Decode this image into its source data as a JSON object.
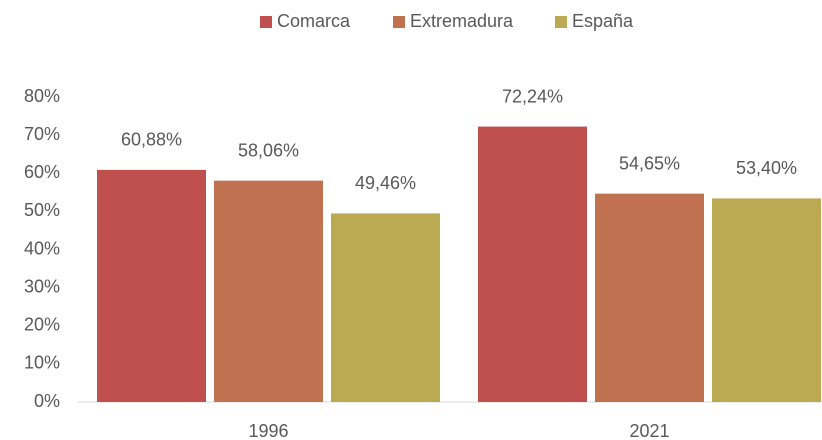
{
  "chart_data": {
    "type": "bar",
    "categories": [
      "1996",
      "2021"
    ],
    "series": [
      {
        "name": "Comarca",
        "color": "#c0504d",
        "values": [
          60.88,
          72.24
        ],
        "value_labels": [
          "60,88%",
          "72,24%"
        ]
      },
      {
        "name": "Extremadura",
        "color": "#c0714f",
        "values": [
          58.06,
          54.65
        ],
        "value_labels": [
          "58,06%",
          "54,65%"
        ]
      },
      {
        "name": "España",
        "color": "#bcaa52",
        "values": [
          49.46,
          53.4
        ],
        "value_labels": [
          "49,46%",
          "53,40%"
        ]
      }
    ],
    "ylim": [
      0,
      80
    ],
    "yticks": [
      {
        "value": 0,
        "label": "0%"
      },
      {
        "value": 10,
        "label": "10%"
      },
      {
        "value": 20,
        "label": "20%"
      },
      {
        "value": 30,
        "label": "30%"
      },
      {
        "value": 40,
        "label": "40%"
      },
      {
        "value": 50,
        "label": "50%"
      },
      {
        "value": 60,
        "label": "60%"
      },
      {
        "value": 70,
        "label": "70%"
      },
      {
        "value": 80,
        "label": "80%"
      }
    ],
    "grid": false,
    "legend": "top"
  }
}
